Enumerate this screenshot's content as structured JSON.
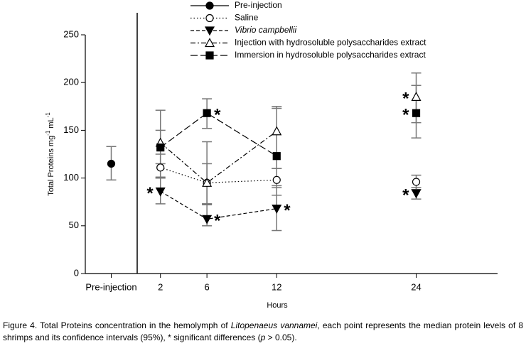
{
  "chart_data": {
    "type": "line",
    "ylabel": [
      "Total Proteins mg",
      "-1",
      " mL",
      "-1"
    ],
    "xlabel": "Hours",
    "ylim": [
      0,
      250
    ],
    "yticks": [
      0,
      50,
      100,
      150,
      200,
      250
    ],
    "xlim": [
      0,
      31
    ],
    "xticks": [
      2,
      6,
      12,
      24
    ],
    "x": [
      2,
      6,
      12,
      24
    ],
    "pre_injection": {
      "name": "Pre-injection",
      "label": "Pre-injection",
      "value": 115,
      "ci": [
        98,
        133
      ],
      "marker": "circle-filled",
      "dash": "",
      "color": "#000000"
    },
    "series": [
      {
        "name": "Saline",
        "marker": "circle-open",
        "dash": "1.5 3",
        "color": "#000000",
        "values": [
          111,
          95,
          98,
          96
        ],
        "ci": [
          [
            100,
            125
          ],
          [
            73,
            115
          ],
          [
            82,
            110
          ],
          [
            88,
            103
          ]
        ],
        "significance": [
          null,
          null,
          null,
          null
        ]
      },
      {
        "name": "Vibrio campbellii",
        "italic": true,
        "marker": "tri-down-filled",
        "dash": "5 3",
        "color": "#000000",
        "values": [
          86,
          57,
          68,
          84
        ],
        "ci": [
          [
            73,
            101
          ],
          [
            50,
            73
          ],
          [
            45,
            92
          ],
          [
            78,
            90
          ]
        ],
        "significance": [
          "*",
          "*",
          "*",
          "*"
        ]
      },
      {
        "name": "Injection with hydrosoluble polysaccharides extract",
        "marker": "tri-up-open",
        "dash": "7 3 2 3",
        "color": "#000000",
        "values": [
          137,
          95,
          149,
          185
        ],
        "ci": [
          [
            100,
            171
          ],
          [
            72,
            138
          ],
          [
            110,
            175
          ],
          [
            158,
            210
          ]
        ],
        "significance": [
          null,
          null,
          null,
          "*"
        ]
      },
      {
        "name": "Immersion in hydrosoluble polysaccharides extract",
        "marker": "square-filled",
        "dash": "10 4",
        "color": "#000000",
        "values": [
          132,
          168,
          123,
          168
        ],
        "ci": [
          [
            115,
            150
          ],
          [
            152,
            183
          ],
          [
            90,
            173
          ],
          [
            142,
            197
          ]
        ],
        "significance": [
          null,
          "*",
          null,
          "*"
        ]
      }
    ],
    "caption": [
      "Figure 4. Total Proteins concentration in the hemolymph of ",
      "Litopenaeus vannamei",
      ", each point represents the median protein levels of 8 shrimps and its confidence intervals (95%), * significant differences (",
      "p",
      " > 0.05)."
    ]
  }
}
